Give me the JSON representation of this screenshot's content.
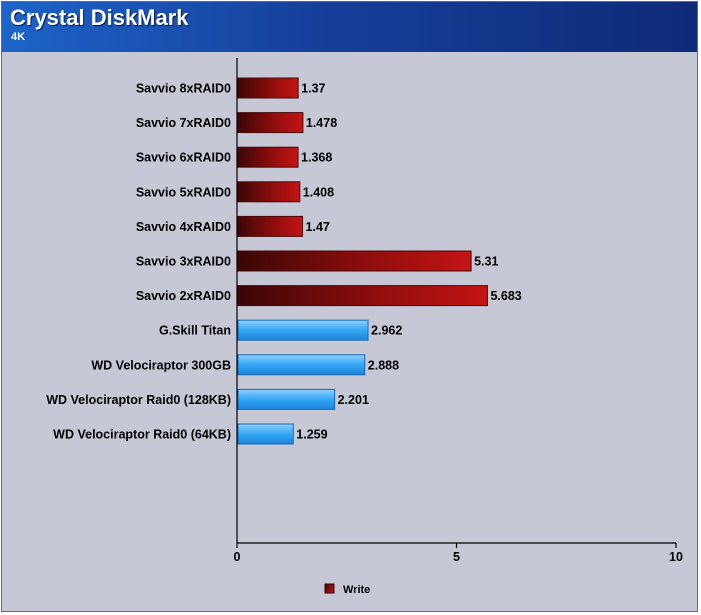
{
  "header": {
    "title": "Crystal DiskMark",
    "subtitle": "4K"
  },
  "colors": {
    "header_start": "#1d64c8",
    "header_end": "#0f2a78",
    "plot_background": "#c6c8d6",
    "red_series": "#b01010",
    "blue_series": "#33a3f0"
  },
  "chart_data": {
    "type": "bar",
    "orientation": "horizontal",
    "title": "Crystal DiskMark",
    "subtitle": "4K",
    "categories": [
      "Savvio 8xRAID0",
      "Savvio 7xRAID0",
      "Savvio 6xRAID0",
      "Savvio 5xRAID0",
      "Savvio 4xRAID0",
      "Savvio 3xRAID0",
      "Savvio 2xRAID0",
      "G.Skill Titan",
      "WD Velociraptor 300GB",
      "WD Velociraptor Raid0 (128KB)",
      "WD Velociraptor Raid0 (64KB)"
    ],
    "values": [
      1.37,
      1.478,
      1.368,
      1.408,
      1.47,
      5.31,
      5.683,
      2.962,
      2.888,
      2.201,
      1.259
    ],
    "value_labels": [
      "1.37",
      "1.478",
      "1.368",
      "1.408",
      "1.47",
      "5.31",
      "5.683",
      "2.962",
      "2.888",
      "2.201",
      "1.259"
    ],
    "bar_colors": [
      "red",
      "red",
      "red",
      "red",
      "red",
      "red",
      "red",
      "blue",
      "blue",
      "blue",
      "blue"
    ],
    "series": [
      {
        "name": "Write",
        "values": [
          1.37,
          1.478,
          1.368,
          1.408,
          1.47,
          5.31,
          5.683,
          2.962,
          2.888,
          2.201,
          1.259
        ]
      }
    ],
    "xlim": [
      0,
      10
    ],
    "xticks": [
      0,
      5,
      10
    ],
    "xtick_labels": [
      "0",
      "5",
      "10"
    ],
    "grid": false,
    "legend": {
      "position": "bottom",
      "entries": [
        "Write"
      ]
    }
  }
}
